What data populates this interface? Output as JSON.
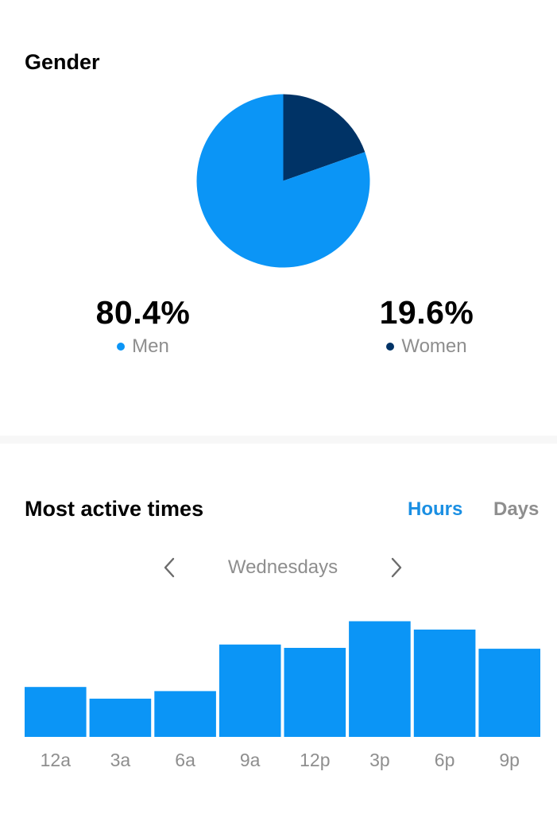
{
  "gender": {
    "title": "Gender",
    "men": {
      "value": "80.4%",
      "label": "Men",
      "share": 80.4,
      "color": "#0b95f6"
    },
    "women": {
      "value": "19.6%",
      "label": "Women",
      "share": 19.6,
      "color": "#003366"
    }
  },
  "active_times": {
    "title": "Most active times",
    "tabs": {
      "hours": "Hours",
      "days": "Days",
      "selected": "hours"
    },
    "active_color": "#1a8fe3",
    "inactive_color": "#8e8e8e",
    "nav": {
      "day": "Wednesdays",
      "prev_icon": "chevron-left-icon",
      "next_icon": "chevron-right-icon"
    }
  },
  "chart_data": [
    {
      "type": "pie",
      "labels": [
        "Men",
        "Women"
      ],
      "values": [
        80.4,
        19.6
      ],
      "colors": [
        "#0b95f6",
        "#003366"
      ]
    },
    {
      "type": "bar",
      "categories": [
        "12a",
        "3a",
        "6a",
        "9a",
        "12p",
        "3p",
        "6p",
        "9p"
      ],
      "values": [
        60,
        46,
        55,
        111,
        107,
        139,
        129,
        106
      ],
      "color": "#0b95f6",
      "ylim": [
        0,
        150
      ]
    }
  ]
}
